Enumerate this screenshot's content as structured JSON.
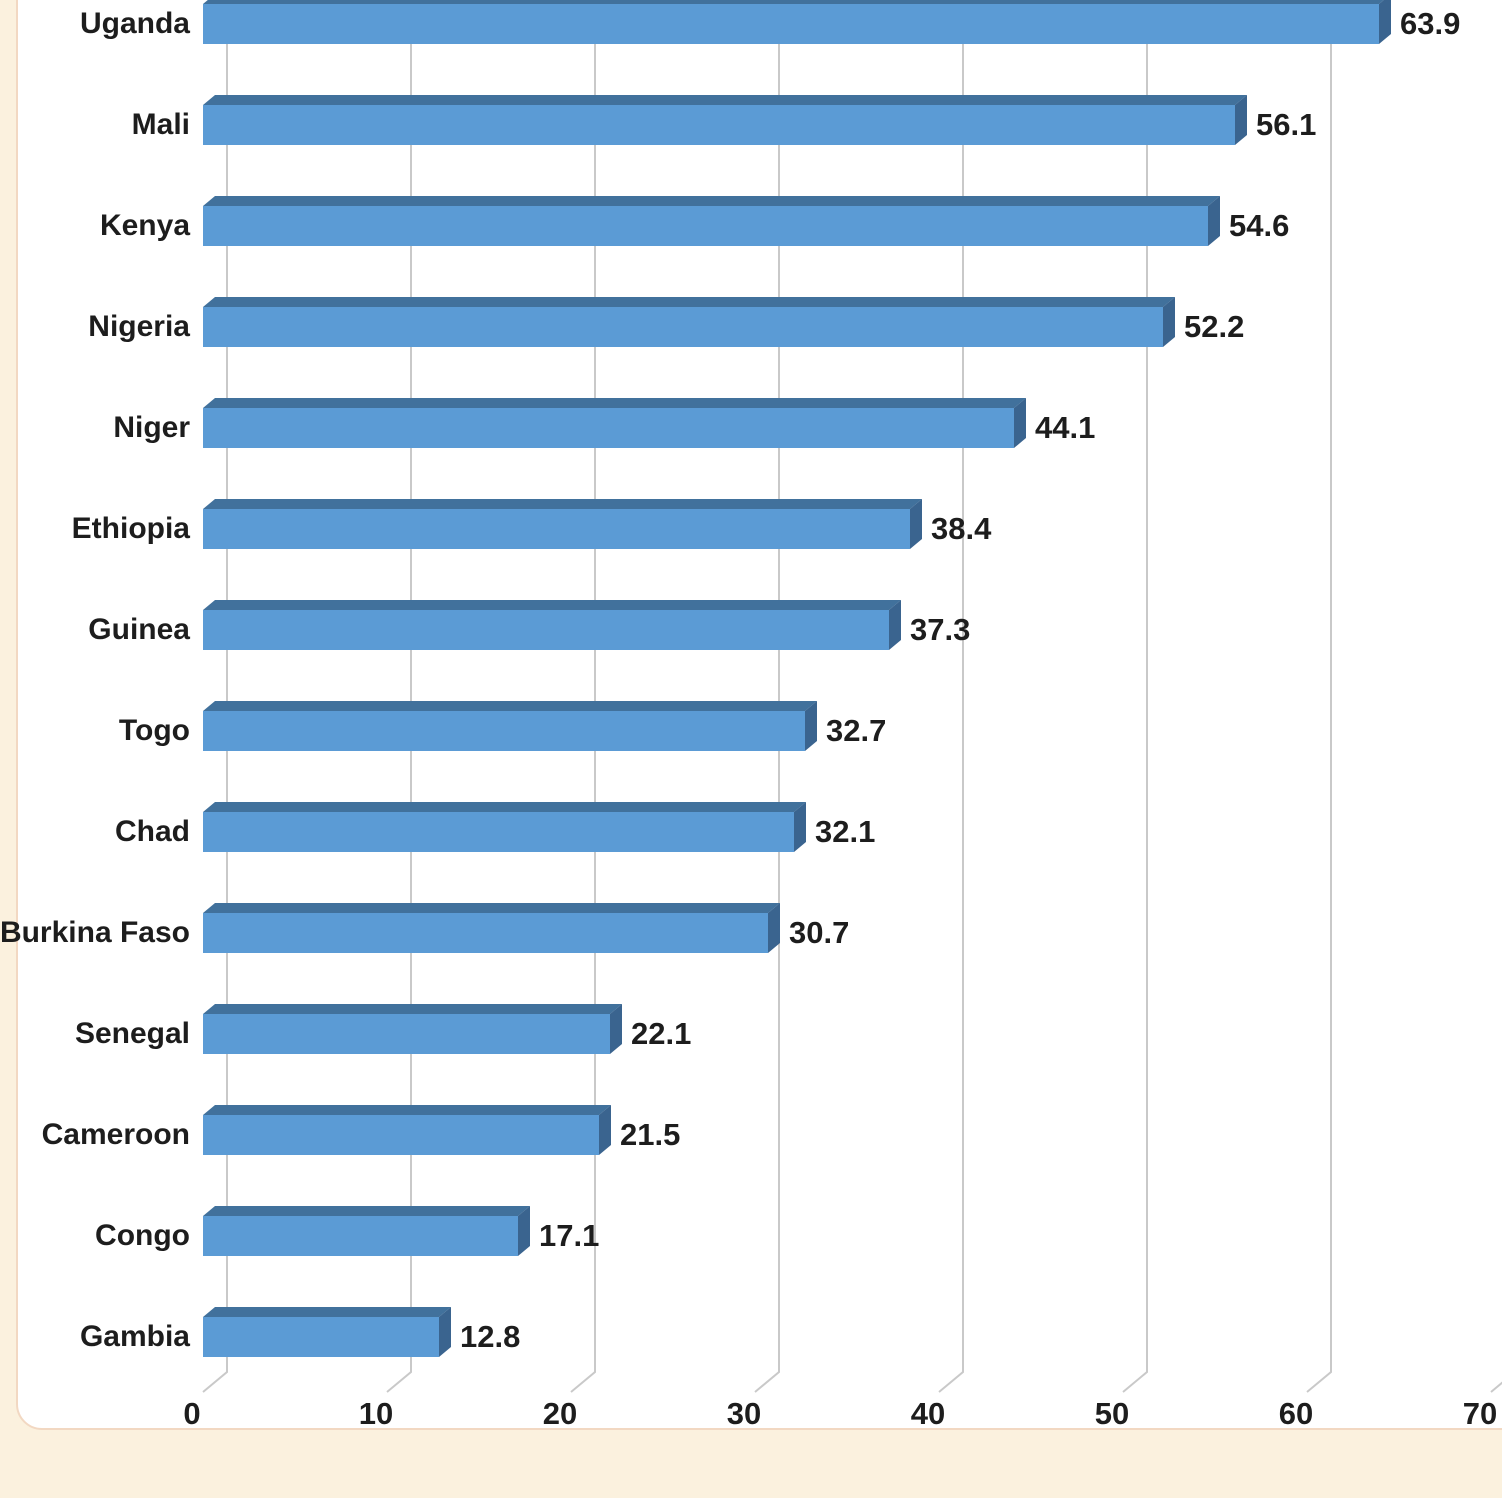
{
  "chart_data": {
    "type": "bar",
    "orientation": "horizontal",
    "style": "3d",
    "title": "",
    "categories": [
      "Uganda",
      "Mali",
      "Kenya",
      "Nigeria",
      "Niger",
      "Ethiopia",
      "Guinea",
      "Togo",
      "Chad",
      "Burkina Faso",
      "Senegal",
      "Cameroon",
      "Congo",
      "Gambia"
    ],
    "values": [
      63.9,
      56.1,
      54.6,
      52.2,
      44.1,
      38.4,
      37.3,
      32.7,
      32.1,
      30.7,
      22.1,
      21.5,
      17.1,
      12.8
    ],
    "value_labels": [
      "63.9",
      "56.1",
      "54.6",
      "52.2",
      "44.1",
      "38.4",
      "37.3",
      "32.7",
      "32.1",
      "30.7",
      "22.1",
      "21.5",
      "17.1",
      "12.8"
    ],
    "xlabel": "",
    "ylabel": "",
    "x_ticks": [
      0,
      10,
      20,
      30,
      40,
      50,
      60,
      70
    ],
    "x_tick_labels": [
      "0",
      "10",
      "20",
      "30",
      "40",
      "50",
      "60",
      "70"
    ],
    "xlim": [
      0,
      70
    ],
    "grid": true,
    "legend": "none",
    "colors": {
      "bar_front": "#5b9bd5",
      "bar_top": "#41719c",
      "bar_cap": "#3a648f",
      "gridline": "#c9c9c9",
      "text": "#1d1d1d",
      "plot_bg": "#ffffff",
      "page_bg": "#fbf1de",
      "card_border": "#f2d8c2"
    }
  }
}
